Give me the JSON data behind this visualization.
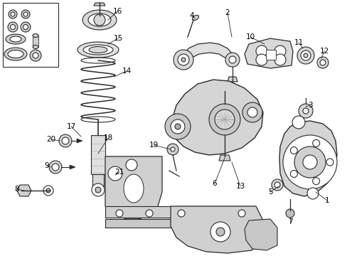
{
  "background_color": "#ffffff",
  "line_color": "#2a2a2a",
  "text_color": "#000000",
  "fig_width": 4.89,
  "fig_height": 3.6,
  "dpi": 100
}
